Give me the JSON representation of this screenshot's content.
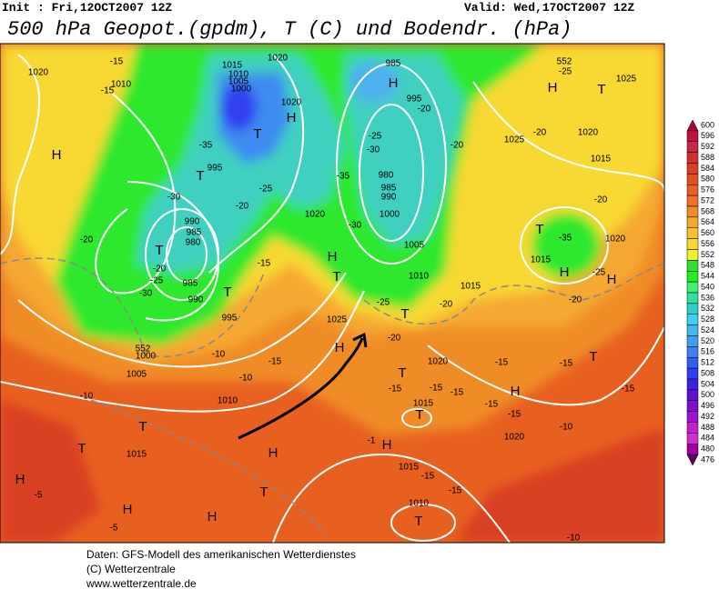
{
  "header": {
    "init": "Init : Fri,12OCT2007 12Z",
    "valid": "Valid: Wed,17OCT2007 12Z",
    "title": "500 hPa Geopot.(gpdm), T (C) und Bodendr. (hPa)"
  },
  "footer": [
    "Daten: GFS-Modell des amerikanischen Wetterdienstes",
    "(C) Wetterzentrale",
    "www.wetterzentrale.de"
  ],
  "legend": [
    {
      "label": "600",
      "color": "#b0003c"
    },
    {
      "label": "596",
      "color": "#c01040"
    },
    {
      "label": "592",
      "color": "#c82848"
    },
    {
      "label": "588",
      "color": "#d03030"
    },
    {
      "label": "584",
      "color": "#d84020"
    },
    {
      "label": "580",
      "color": "#e05020"
    },
    {
      "label": "576",
      "color": "#e86020"
    },
    {
      "label": "572",
      "color": "#f07028"
    },
    {
      "label": "568",
      "color": "#f08c28"
    },
    {
      "label": "564",
      "color": "#f5a830"
    },
    {
      "label": "560",
      "color": "#f8c030"
    },
    {
      "label": "556",
      "color": "#f8d830"
    },
    {
      "label": "552",
      "color": "#f0f030"
    },
    {
      "label": "548",
      "color": "#30e030"
    },
    {
      "label": "544",
      "color": "#20f020"
    },
    {
      "label": "540",
      "color": "#40f070"
    },
    {
      "label": "536",
      "color": "#30e0a0"
    },
    {
      "label": "532",
      "color": "#30d0c8"
    },
    {
      "label": "528",
      "color": "#40d0f0"
    },
    {
      "label": "524",
      "color": "#40b8f0"
    },
    {
      "label": "520",
      "color": "#40a0f0"
    },
    {
      "label": "516",
      "color": "#4080f0"
    },
    {
      "label": "512",
      "color": "#3060f0"
    },
    {
      "label": "508",
      "color": "#3040f0"
    },
    {
      "label": "504",
      "color": "#4020e0"
    },
    {
      "label": "500",
      "color": "#6010d0"
    },
    {
      "label": "496",
      "color": "#8010c8"
    },
    {
      "label": "492",
      "color": "#a010d0"
    },
    {
      "label": "488",
      "color": "#c020d0"
    },
    {
      "label": "484",
      "color": "#d030d0"
    },
    {
      "label": "480",
      "color": "#a000a0"
    },
    {
      "label": "476",
      "color": "#600060"
    }
  ],
  "map_labels": [
    "1020",
    "1010",
    "-15",
    "-15",
    "H",
    "1015",
    "1010",
    "1005",
    "1000",
    "1020",
    "H",
    "T",
    "1020",
    "-35",
    "995",
    "T",
    "-25",
    "-20",
    "-30",
    "990",
    "985",
    "980",
    "T",
    "-20",
    "-25",
    "-30",
    "985",
    "990",
    "T",
    "995",
    "1000",
    "1005",
    "-10",
    "1010",
    "-10",
    "-15",
    "1020",
    "H",
    "T",
    "-15",
    "-30",
    "-35",
    "990",
    "985",
    "H",
    "995",
    "-30",
    "-25",
    "980",
    "985",
    "990",
    "1000",
    "-20",
    "-20",
    "1005",
    "1010",
    "1015",
    "1025",
    "H",
    "-20",
    "-25",
    "-20",
    "T",
    "1020",
    "-15",
    "T",
    "-15",
    "-15",
    "1015",
    "T",
    "-15",
    "-15",
    "H",
    "-15",
    "1020",
    "-10",
    "T",
    "-15",
    "-15",
    "-1",
    "H",
    "1015",
    "-15",
    "-15",
    "1010",
    "T",
    "-10",
    "H",
    "T",
    "T",
    "1015",
    "-10",
    "H",
    "-5",
    "H",
    "H",
    "-5",
    "T",
    "-20",
    "H",
    "T",
    "-25",
    "1025",
    "1025",
    "-20",
    "1020",
    "1015",
    "-20",
    "T",
    "-35",
    "1020",
    "1015",
    "H",
    "-25",
    "H",
    "-20",
    "552",
    "552"
  ]
}
